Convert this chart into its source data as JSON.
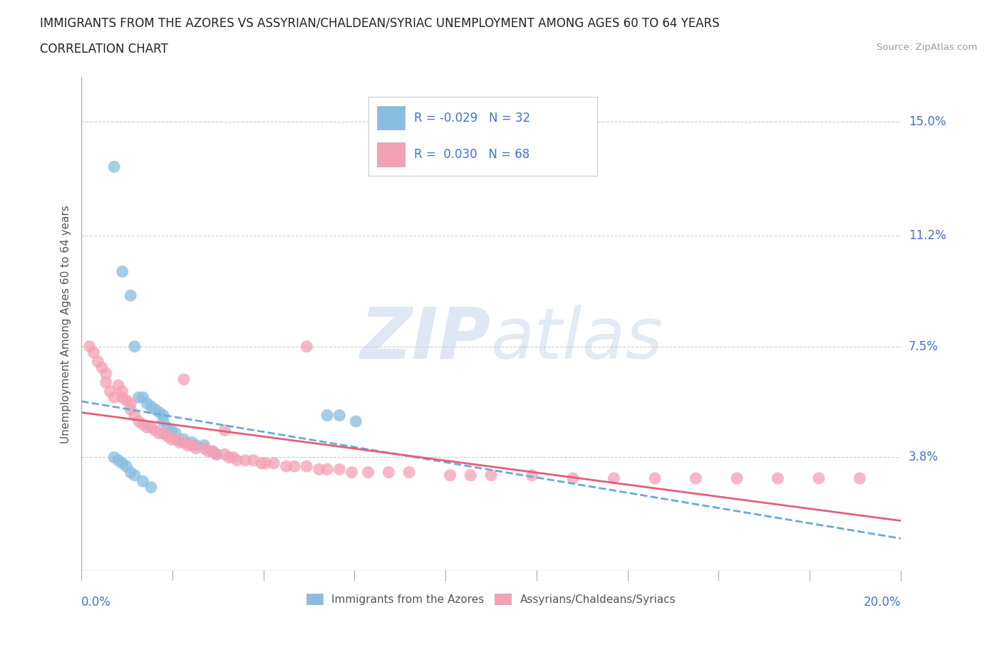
{
  "title_line1": "IMMIGRANTS FROM THE AZORES VS ASSYRIAN/CHALDEAN/SYRIAC UNEMPLOYMENT AMONG AGES 60 TO 64 YEARS",
  "title_line2": "CORRELATION CHART",
  "source": "Source: ZipAtlas.com",
  "ylabel": "Unemployment Among Ages 60 to 64 years",
  "ytick_vals": [
    0.038,
    0.075,
    0.112,
    0.15
  ],
  "ytick_labels": [
    "3.8%",
    "7.5%",
    "11.2%",
    "15.0%"
  ],
  "xmin": 0.0,
  "xmax": 0.2,
  "ymin": 0.0,
  "ymax": 0.165,
  "legend_line1": "R = -0.029   N = 32",
  "legend_line2": "R =  0.030   N = 68",
  "legend_label_azores": "Immigrants from the Azores",
  "legend_label_assyrian": "Assyrians/Chaldeans/Syriacs",
  "color_azores": "#89bde0",
  "color_assyrian": "#f4a0b5",
  "color_trendline_azores": "#6aaad4",
  "color_trendline_assyrian": "#e0607a",
  "color_legend_text": "#4472c4",
  "color_axis_labels": "#4472c4",
  "color_ylabel": "#555555",
  "color_grid": "#cccccc",
  "color_axis_line": "#aaaaaa",
  "azores_x": [
    0.008,
    0.01,
    0.012,
    0.013,
    0.014,
    0.015,
    0.016,
    0.017,
    0.018,
    0.019,
    0.02,
    0.02,
    0.021,
    0.022,
    0.023,
    0.025,
    0.027,
    0.028,
    0.03,
    0.032,
    0.033,
    0.06,
    0.063,
    0.067,
    0.008,
    0.009,
    0.01,
    0.011,
    0.012,
    0.013,
    0.015,
    0.017
  ],
  "azores_y": [
    0.135,
    0.1,
    0.092,
    0.075,
    0.058,
    0.058,
    0.056,
    0.055,
    0.054,
    0.053,
    0.052,
    0.05,
    0.048,
    0.047,
    0.046,
    0.044,
    0.043,
    0.042,
    0.042,
    0.04,
    0.039,
    0.052,
    0.052,
    0.05,
    0.038,
    0.037,
    0.036,
    0.035,
    0.033,
    0.032,
    0.03,
    0.028
  ],
  "assyrian_x": [
    0.002,
    0.003,
    0.004,
    0.005,
    0.006,
    0.006,
    0.007,
    0.008,
    0.009,
    0.01,
    0.01,
    0.011,
    0.012,
    0.012,
    0.013,
    0.014,
    0.015,
    0.016,
    0.017,
    0.018,
    0.019,
    0.02,
    0.021,
    0.022,
    0.023,
    0.024,
    0.025,
    0.026,
    0.027,
    0.028,
    0.03,
    0.031,
    0.032,
    0.033,
    0.035,
    0.036,
    0.037,
    0.038,
    0.04,
    0.042,
    0.044,
    0.045,
    0.047,
    0.05,
    0.052,
    0.055,
    0.058,
    0.06,
    0.063,
    0.066,
    0.07,
    0.075,
    0.08,
    0.09,
    0.1,
    0.11,
    0.12,
    0.13,
    0.14,
    0.15,
    0.16,
    0.17,
    0.18,
    0.19,
    0.025,
    0.035,
    0.055,
    0.095
  ],
  "assyrian_y": [
    0.075,
    0.073,
    0.07,
    0.068,
    0.066,
    0.063,
    0.06,
    0.058,
    0.062,
    0.06,
    0.058,
    0.057,
    0.056,
    0.054,
    0.052,
    0.05,
    0.049,
    0.048,
    0.048,
    0.047,
    0.046,
    0.046,
    0.045,
    0.044,
    0.044,
    0.043,
    0.043,
    0.042,
    0.042,
    0.041,
    0.041,
    0.04,
    0.04,
    0.039,
    0.039,
    0.038,
    0.038,
    0.037,
    0.037,
    0.037,
    0.036,
    0.036,
    0.036,
    0.035,
    0.035,
    0.035,
    0.034,
    0.034,
    0.034,
    0.033,
    0.033,
    0.033,
    0.033,
    0.032,
    0.032,
    0.032,
    0.031,
    0.031,
    0.031,
    0.031,
    0.031,
    0.031,
    0.031,
    0.031,
    0.064,
    0.047,
    0.075,
    0.032
  ]
}
